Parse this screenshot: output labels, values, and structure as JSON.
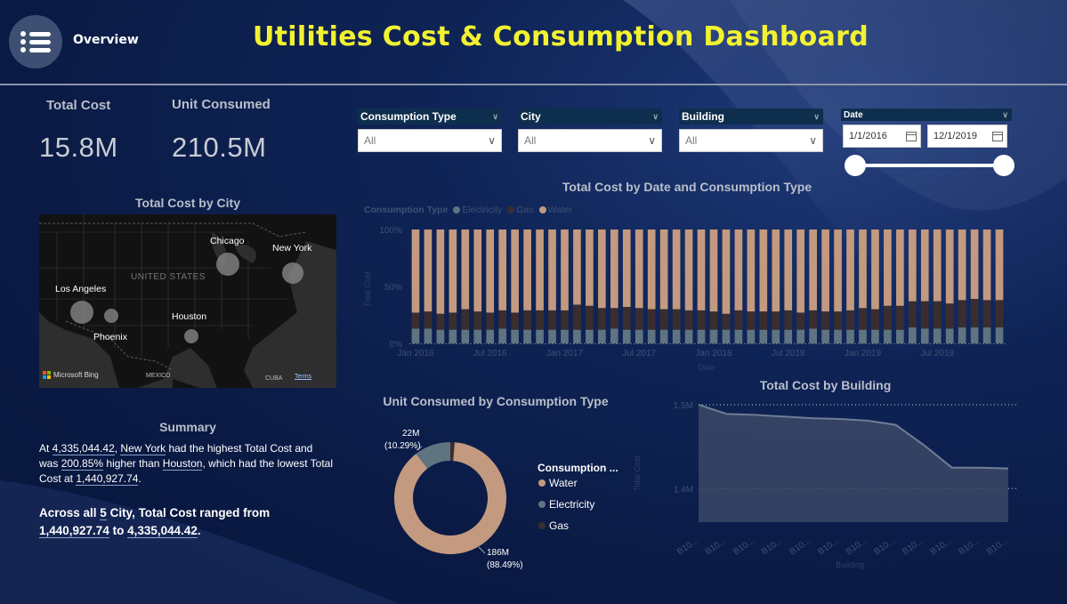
{
  "header": {
    "overview_label": "Overview",
    "title": "Utilities Cost & Consumption Dashboard"
  },
  "kpis": {
    "total_cost_label": "Total Cost",
    "total_cost_value": "15.8M",
    "unit_consumed_label": "Unit Consumed",
    "unit_consumed_value": "210.5M"
  },
  "map": {
    "title": "Total Cost by City",
    "country_label": "UNITED STATES",
    "mexico_label": "MEXICO",
    "cuba_label": "CUBA",
    "bing_label": "Microsoft Bing",
    "terms_label": "Terms",
    "cities": [
      {
        "name": "Chicago"
      },
      {
        "name": "New York"
      },
      {
        "name": "Los Angeles"
      },
      {
        "name": "Houston"
      },
      {
        "name": "Phoenix"
      }
    ]
  },
  "summary": {
    "title": "Summary",
    "p1_a": "At ",
    "p1_value_high": "4,335,044.42",
    "p1_b": ", ",
    "p1_city_high": "New York",
    "p1_c": " had the highest Total Cost and was ",
    "p1_pct": "200.85%",
    "p1_d": " higher than ",
    "p1_city_low": "Houston",
    "p1_e": ", which had the lowest Total Cost at ",
    "p1_value_low": "1,440,927.74",
    "p1_f": ".",
    "p2_a": "Across all ",
    "p2_count": "5",
    "p2_b": " City, Total Cost ranged from ",
    "p2_min": "1,440,927.74",
    "p2_c": " to ",
    "p2_max": "4,335,044.42",
    "p2_d": "."
  },
  "slicers": {
    "consumption_type": {
      "label": "Consumption Type",
      "value": "All"
    },
    "city": {
      "label": "City",
      "value": "All"
    },
    "building": {
      "label": "Building",
      "value": "All"
    },
    "date": {
      "label": "Date",
      "start": "1/1/2016",
      "end": "12/1/2019"
    }
  },
  "colors": {
    "water": "#c39a7f",
    "electricity": "#5f7480",
    "gas": "#3a2d2f",
    "title_yellow": "#f2f230"
  },
  "chart_data": [
    {
      "type": "bar",
      "stacked": "100%",
      "title": "Total Cost by Date and Consumption Type",
      "legend_title": "Consumption Type",
      "legend_position": "top-left",
      "xlabel": "Date",
      "ylabel": "Total Cost",
      "x_tick_labels": [
        "Jan 2016",
        "Jul 2016",
        "Jan 2017",
        "Jul 2017",
        "Jan 2018",
        "Jul 2018",
        "Jan 2019",
        "Jul 2019"
      ],
      "y_tick_labels": [
        "100%",
        "50%",
        "0%"
      ],
      "series": [
        {
          "name": "Electricity",
          "color": "#5f7480",
          "values": [
            13,
            13,
            12,
            12,
            12,
            12,
            12,
            13,
            12,
            12,
            12,
            12,
            12,
            12,
            12,
            12,
            13,
            12,
            12,
            12,
            12,
            12,
            12,
            12,
            12,
            12,
            12,
            12,
            12,
            12,
            12,
            12,
            13,
            12,
            12,
            12,
            12,
            12,
            12,
            12,
            14,
            13,
            13,
            13,
            14,
            14,
            14,
            14
          ]
        },
        {
          "name": "Gas",
          "color": "#3a2d2f",
          "values": [
            14,
            15,
            14,
            15,
            18,
            16,
            15,
            16,
            15,
            17,
            17,
            17,
            17,
            22,
            21,
            19,
            18,
            20,
            19,
            18,
            18,
            18,
            17,
            17,
            16,
            14,
            17,
            16,
            16,
            16,
            17,
            15,
            16,
            16,
            16,
            17,
            19,
            18,
            21,
            21,
            23,
            24,
            24,
            22,
            24,
            25,
            24,
            24
          ]
        },
        {
          "name": "Water",
          "color": "#c39a7f",
          "values": [
            73,
            72,
            74,
            73,
            70,
            72,
            73,
            71,
            73,
            71,
            71,
            71,
            71,
            66,
            67,
            69,
            69,
            68,
            69,
            70,
            70,
            70,
            71,
            71,
            72,
            74,
            71,
            72,
            72,
            72,
            71,
            73,
            71,
            72,
            72,
            71,
            69,
            70,
            67,
            67,
            63,
            63,
            63,
            65,
            62,
            61,
            62,
            62
          ]
        }
      ]
    },
    {
      "type": "pie",
      "donut": true,
      "title": "Unit Consumed by Consumption Type",
      "legend_title": "Consumption ...",
      "legend_position": "right",
      "slices": [
        {
          "name": "Water",
          "value": 186,
          "label": "186M",
          "pct": "(88.49%)",
          "color": "#c39a7f"
        },
        {
          "name": "Electricity",
          "value": 22,
          "label": "22M",
          "pct": "(10.29%)",
          "color": "#5f7480"
        },
        {
          "name": "Gas",
          "value": 2.6,
          "label": "",
          "pct": "",
          "color": "#3a2d2f"
        }
      ]
    },
    {
      "type": "area",
      "title": "Total Cost by Building",
      "xlabel": "Building",
      "ylabel": "Total Cost",
      "y_tick_labels": [
        "1.5M",
        "1.4M"
      ],
      "ylim": [
        1.36,
        1.5
      ],
      "categories": [
        "B10...",
        "B10...",
        "B10...",
        "B10...",
        "B10...",
        "B10...",
        "B10...",
        "B10...",
        "B10...",
        "B10...",
        "B10...",
        "B10..."
      ],
      "values": [
        1.5,
        1.489,
        1.488,
        1.486,
        1.484,
        1.483,
        1.481,
        1.476,
        1.452,
        1.425,
        1.425,
        1.424
      ]
    }
  ]
}
